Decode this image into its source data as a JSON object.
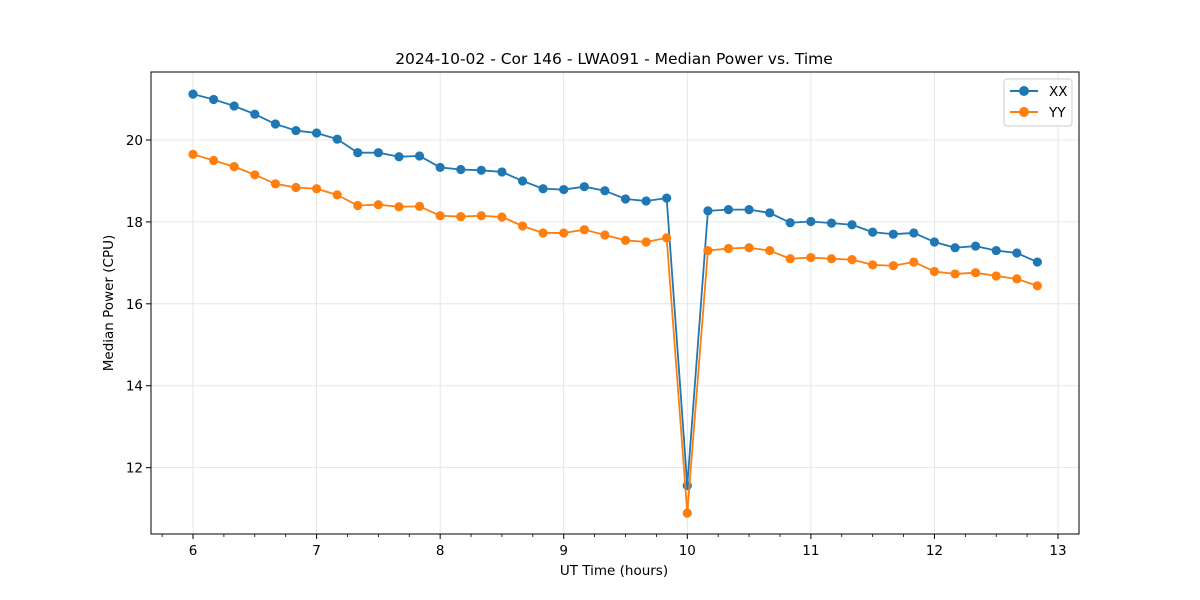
{
  "colors": {
    "xx": "#1f77b4",
    "yy": "#ff7f0e",
    "grid": "#e0e0e0",
    "axes": "#000000"
  },
  "chart_data": {
    "type": "line",
    "title": "2024-10-02 - Cor 146 - LWA091 - Median Power vs. Time",
    "xlabel": "UT Time (hours)",
    "ylabel": "Median Power (CPU)",
    "xlim": [
      5.66,
      13.17
    ],
    "ylim": [
      10.38,
      21.66
    ],
    "xticks": [
      6,
      7,
      8,
      9,
      10,
      11,
      12,
      13
    ],
    "xtick_labels": [
      "6",
      "7",
      "8",
      "9",
      "10",
      "11",
      "12",
      "13"
    ],
    "yticks": [
      12,
      14,
      16,
      18,
      20
    ],
    "ytick_labels": [
      "12",
      "14",
      "16",
      "18",
      "20"
    ],
    "x_minor_step": 0.25,
    "grid": true,
    "legend": "top-right",
    "x": [
      6.0,
      6.167,
      6.333,
      6.5,
      6.667,
      6.833,
      7.0,
      7.167,
      7.333,
      7.5,
      7.667,
      7.833,
      8.0,
      8.167,
      8.333,
      8.5,
      8.667,
      8.833,
      9.0,
      9.167,
      9.333,
      9.5,
      9.667,
      9.833,
      10.0,
      10.167,
      10.333,
      10.5,
      10.667,
      10.833,
      11.0,
      11.167,
      11.333,
      11.5,
      11.667,
      11.833,
      12.0,
      12.167,
      12.333,
      12.5,
      12.667,
      12.833
    ],
    "series": [
      {
        "name": "XX",
        "color": "#1f77b4",
        "values": [
          21.12,
          20.99,
          20.83,
          20.63,
          20.39,
          20.23,
          20.17,
          20.02,
          19.69,
          19.69,
          19.59,
          19.61,
          19.33,
          19.28,
          19.26,
          19.22,
          19.0,
          18.81,
          18.79,
          18.86,
          18.76,
          18.56,
          18.51,
          18.58,
          11.56,
          18.27,
          18.3,
          18.3,
          18.22,
          17.98,
          18.01,
          17.97,
          17.93,
          17.75,
          17.7,
          17.73,
          17.51,
          17.37,
          17.41,
          17.3,
          17.24,
          17.02
        ]
      },
      {
        "name": "YY",
        "color": "#ff7f0e",
        "values": [
          19.65,
          19.5,
          19.35,
          19.15,
          18.93,
          18.84,
          18.81,
          18.66,
          18.4,
          18.42,
          18.37,
          18.38,
          18.15,
          18.13,
          18.15,
          18.12,
          17.9,
          17.73,
          17.73,
          17.81,
          17.68,
          17.55,
          17.51,
          17.61,
          10.89,
          17.3,
          17.35,
          17.37,
          17.3,
          17.1,
          17.13,
          17.1,
          17.08,
          16.95,
          16.93,
          17.02,
          16.79,
          16.73,
          16.76,
          16.68,
          16.61,
          16.44
        ]
      }
    ]
  }
}
